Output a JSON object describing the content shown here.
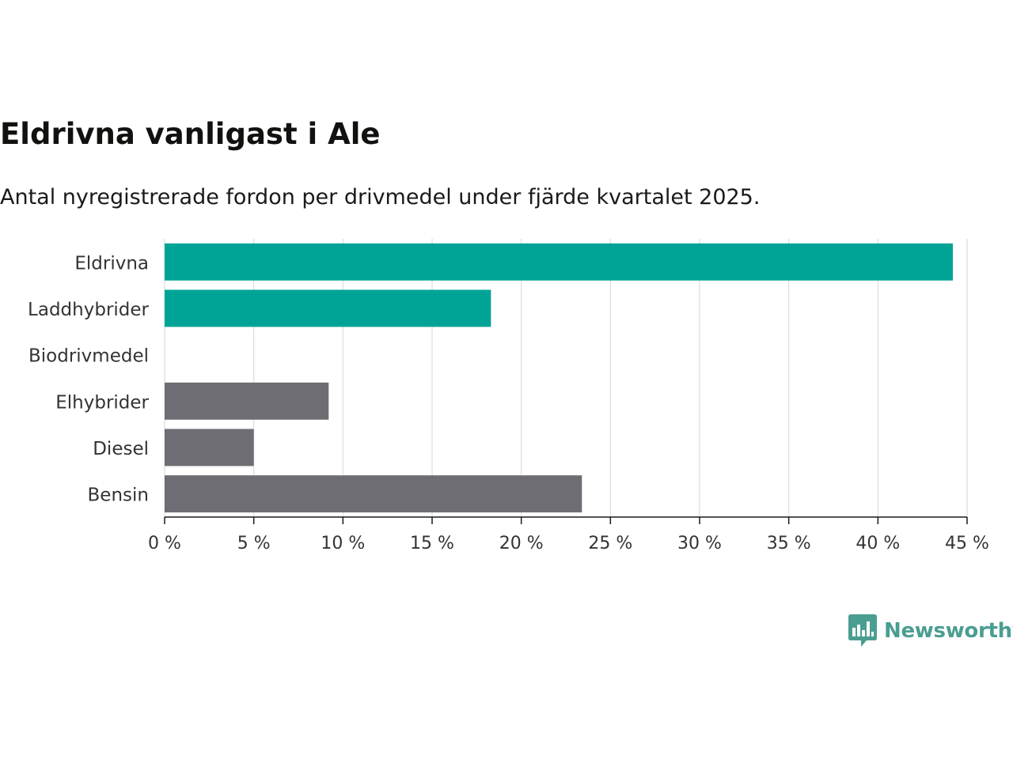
{
  "chart_data": {
    "type": "bar",
    "orientation": "horizontal",
    "title": "Eldrivna vanligast i Ale",
    "subtitle": "Antal nyregistrerade fordon per drivmedel under fjärde kvartalet 2025.",
    "categories": [
      "Eldrivna",
      "Laddhybrider",
      "Biodrivmedel",
      "Elhybrider",
      "Diesel",
      "Bensin"
    ],
    "values": [
      44.2,
      18.3,
      0,
      9.2,
      5.0,
      23.4
    ],
    "bar_colors": [
      "#00a497",
      "#00a497",
      "#00a497",
      "#6e6d73",
      "#6e6d73",
      "#6e6d73"
    ],
    "xlim": [
      0,
      45
    ],
    "xticks": [
      0,
      5,
      10,
      15,
      20,
      25,
      30,
      35,
      40,
      45
    ],
    "tick_suffix": " %",
    "xlabel": "",
    "ylabel": "",
    "grid": "vertical"
  },
  "brand": {
    "name": "Newsworthy",
    "color": "#4a9e91"
  },
  "colors": {
    "grid": "#dddddd",
    "axis": "#1a1a1a"
  }
}
